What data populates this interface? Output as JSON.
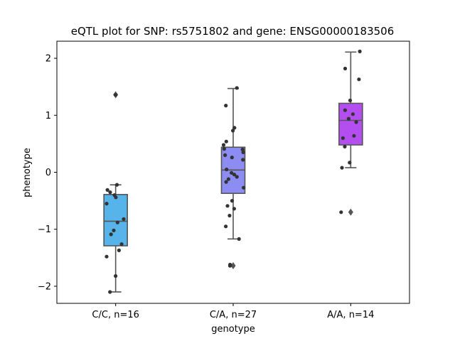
{
  "chart_data": {
    "type": "box",
    "title": "eQTL plot for SNP: rs5751802 and gene: ENSG00000183506",
    "xlabel": "genotype",
    "ylabel": "phenotype",
    "ylim": [
      -2.3,
      2.3
    ],
    "yticks": [
      -2,
      -1,
      0,
      1,
      2
    ],
    "yticklabels": [
      "−2",
      "−1",
      "0",
      "1",
      "2"
    ],
    "categories": [
      "C/C, n=16",
      "C/A, n=27",
      "A/A, n=14"
    ],
    "grid": false,
    "legend": "none",
    "colors": {
      "boxes": [
        "#56b4ea",
        "#8c8cf2",
        "#b44ef0"
      ],
      "edge": "#555555",
      "points": "#333333"
    },
    "boxes": [
      {
        "category": "C/C, n=16",
        "q1": -1.29,
        "median": -0.86,
        "q3": -0.39,
        "whisker_low": -2.1,
        "whisker_high": -0.22,
        "outliers": [
          1.36
        ]
      },
      {
        "category": "C/A, n=27",
        "q1": -0.37,
        "median": 0.04,
        "q3": 0.44,
        "whisker_low": -1.17,
        "whisker_high": 1.47,
        "outliers": [
          -1.64
        ]
      },
      {
        "category": "A/A, n=14",
        "q1": 0.48,
        "median": 0.91,
        "q3": 1.21,
        "whisker_low": 0.08,
        "whisker_high": 2.11,
        "outliers": [
          -0.7
        ]
      }
    ],
    "points": [
      {
        "category": "C/C, n=16",
        "values": [
          1.36,
          -0.22,
          -0.31,
          -0.35,
          -0.4,
          -0.44,
          -0.55,
          -0.82,
          -0.88,
          -1.02,
          -1.09,
          -1.26,
          -1.37,
          -1.48,
          -1.82,
          -2.1
        ]
      },
      {
        "category": "C/A, n=27",
        "values": [
          1.48,
          1.17,
          0.78,
          0.73,
          0.54,
          0.48,
          0.4,
          0.35,
          0.3,
          0.26,
          0.22,
          0.05,
          -0.01,
          -0.04,
          -0.08,
          -0.12,
          -0.17,
          -0.27,
          -0.5,
          -0.59,
          -0.64,
          -0.76,
          -0.95,
          -1.17,
          -1.62,
          -1.64,
          0.41
        ]
      },
      {
        "category": "A/A, n=14",
        "values": [
          2.12,
          1.82,
          1.63,
          1.26,
          1.09,
          1.02,
          0.94,
          0.88,
          0.64,
          0.6,
          0.45,
          0.17,
          0.08,
          -0.7
        ]
      }
    ]
  }
}
